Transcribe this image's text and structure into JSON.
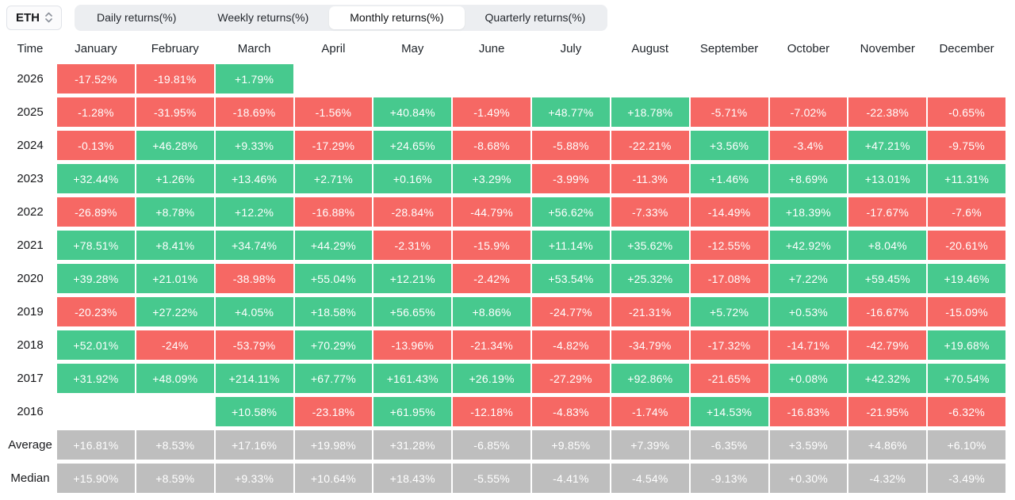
{
  "coin_selector": {
    "label": "ETH"
  },
  "tabs": [
    {
      "label": "Daily returns(%)",
      "active": false
    },
    {
      "label": "Weekly returns(%)",
      "active": false
    },
    {
      "label": "Monthly returns(%)",
      "active": true
    },
    {
      "label": "Quarterly returns(%)",
      "active": false
    }
  ],
  "colors": {
    "positive": "#47c98e",
    "negative": "#f66864",
    "neutral": "#bebebe"
  },
  "chart_data": {
    "type": "heatmap",
    "title": "ETH Monthly returns(%)",
    "columns": [
      "Time",
      "January",
      "February",
      "March",
      "April",
      "May",
      "June",
      "July",
      "August",
      "September",
      "October",
      "November",
      "December"
    ],
    "rows": [
      {
        "label": "2026",
        "type": "year",
        "cells": [
          "-17.52%",
          "-19.81%",
          "+1.79%",
          "",
          "",
          "",
          "",
          "",
          "",
          "",
          "",
          ""
        ]
      },
      {
        "label": "2025",
        "type": "year",
        "cells": [
          "-1.28%",
          "-31.95%",
          "-18.69%",
          "-1.56%",
          "+40.84%",
          "-1.49%",
          "+48.77%",
          "+18.78%",
          "-5.71%",
          "-7.02%",
          "-22.38%",
          "-0.65%"
        ]
      },
      {
        "label": "2024",
        "type": "year",
        "cells": [
          "-0.13%",
          "+46.28%",
          "+9.33%",
          "-17.29%",
          "+24.65%",
          "-8.68%",
          "-5.88%",
          "-22.21%",
          "+3.56%",
          "-3.4%",
          "+47.21%",
          "-9.75%"
        ]
      },
      {
        "label": "2023",
        "type": "year",
        "cells": [
          "+32.44%",
          "+1.26%",
          "+13.46%",
          "+2.71%",
          "+0.16%",
          "+3.29%",
          "-3.99%",
          "-11.3%",
          "+1.46%",
          "+8.69%",
          "+13.01%",
          "+11.31%"
        ]
      },
      {
        "label": "2022",
        "type": "year",
        "cells": [
          "-26.89%",
          "+8.78%",
          "+12.2%",
          "-16.88%",
          "-28.84%",
          "-44.79%",
          "+56.62%",
          "-7.33%",
          "-14.49%",
          "+18.39%",
          "-17.67%",
          "-7.6%"
        ]
      },
      {
        "label": "2021",
        "type": "year",
        "cells": [
          "+78.51%",
          "+8.41%",
          "+34.74%",
          "+44.29%",
          "-2.31%",
          "-15.9%",
          "+11.14%",
          "+35.62%",
          "-12.55%",
          "+42.92%",
          "+8.04%",
          "-20.61%"
        ]
      },
      {
        "label": "2020",
        "type": "year",
        "cells": [
          "+39.28%",
          "+21.01%",
          "-38.98%",
          "+55.04%",
          "+12.21%",
          "-2.42%",
          "+53.54%",
          "+25.32%",
          "-17.08%",
          "+7.22%",
          "+59.45%",
          "+19.46%"
        ]
      },
      {
        "label": "2019",
        "type": "year",
        "cells": [
          "-20.23%",
          "+27.22%",
          "+4.05%",
          "+18.58%",
          "+56.65%",
          "+8.86%",
          "-24.77%",
          "-21.31%",
          "+5.72%",
          "+0.53%",
          "-16.67%",
          "-15.09%"
        ]
      },
      {
        "label": "2018",
        "type": "year",
        "cells": [
          "+52.01%",
          "-24%",
          "-53.79%",
          "+70.29%",
          "-13.96%",
          "-21.34%",
          "-4.82%",
          "-34.79%",
          "-17.32%",
          "-14.71%",
          "-42.79%",
          "+19.68%"
        ]
      },
      {
        "label": "2017",
        "type": "year",
        "cells": [
          "+31.92%",
          "+48.09%",
          "+214.11%",
          "+67.77%",
          "+161.43%",
          "+26.19%",
          "-27.29%",
          "+92.86%",
          "-21.65%",
          "+0.08%",
          "+42.32%",
          "+70.54%"
        ]
      },
      {
        "label": "2016",
        "type": "year",
        "cells": [
          "",
          "",
          "+10.58%",
          "-23.18%",
          "+61.95%",
          "-12.18%",
          "-4.83%",
          "-1.74%",
          "+14.53%",
          "-16.83%",
          "-21.95%",
          "-6.32%"
        ]
      },
      {
        "label": "Average",
        "type": "summary",
        "cells": [
          "+16.81%",
          "+8.53%",
          "+17.16%",
          "+19.98%",
          "+31.28%",
          "-6.85%",
          "+9.85%",
          "+7.39%",
          "-6.35%",
          "+3.59%",
          "+4.86%",
          "+6.10%"
        ]
      },
      {
        "label": "Median",
        "type": "summary",
        "cells": [
          "+15.90%",
          "+8.59%",
          "+9.33%",
          "+10.64%",
          "+18.43%",
          "-5.55%",
          "-4.41%",
          "-4.54%",
          "-9.13%",
          "+0.30%",
          "-4.32%",
          "-3.49%"
        ]
      }
    ]
  }
}
